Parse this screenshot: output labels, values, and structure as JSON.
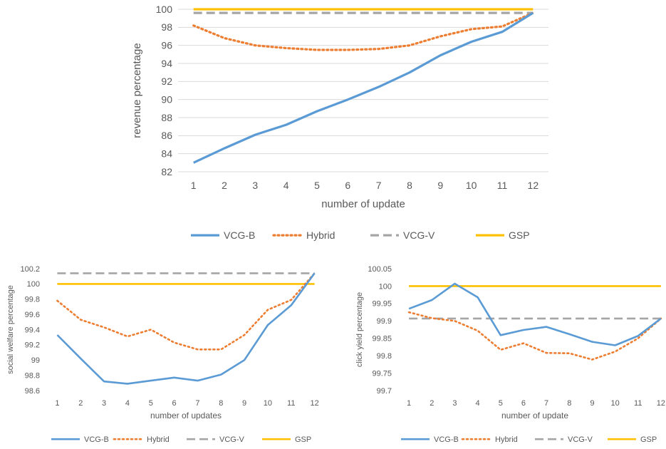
{
  "colors": {
    "VCG-B": "#5B9BD5",
    "Hybrid": "#ED7D31",
    "VCG-V": "#A5A5A5",
    "GSP": "#FFC000",
    "grid": "#D9D9D9",
    "text": "#595959"
  },
  "chart_data": [
    {
      "type": "line",
      "id": "revenue",
      "title": "",
      "xlabel": "number of update",
      "ylabel": "revenue percentage",
      "ylim": [
        82,
        100
      ],
      "yticks": [
        82,
        84,
        86,
        88,
        90,
        92,
        94,
        96,
        98,
        100
      ],
      "ytick_labels": [
        "82",
        "84",
        "86",
        "88",
        "90",
        "92",
        "94",
        "96",
        "98",
        "100"
      ],
      "grid": true,
      "legend_position": "bottom",
      "x": [
        1,
        2,
        3,
        4,
        5,
        6,
        7,
        8,
        9,
        10,
        11,
        12
      ],
      "series": [
        {
          "name": "VCG-B",
          "style": "solid",
          "values": [
            83.0,
            84.6,
            86.1,
            87.2,
            88.7,
            90.0,
            91.4,
            93.0,
            94.9,
            96.4,
            97.5,
            99.6
          ]
        },
        {
          "name": "Hybrid",
          "style": "dotted",
          "values": [
            98.2,
            96.8,
            96.0,
            95.7,
            95.5,
            95.5,
            95.6,
            96.0,
            97.0,
            97.8,
            98.1,
            99.6
          ]
        },
        {
          "name": "VCG-V",
          "style": "dashed",
          "values": [
            99.6,
            99.6,
            99.6,
            99.6,
            99.6,
            99.6,
            99.6,
            99.6,
            99.6,
            99.6,
            99.6,
            99.6
          ]
        },
        {
          "name": "GSP",
          "style": "solid",
          "values": [
            100,
            100,
            100,
            100,
            100,
            100,
            100,
            100,
            100,
            100,
            100,
            100
          ]
        }
      ]
    },
    {
      "type": "line",
      "id": "social-welfare",
      "title": "",
      "xlabel": "number of updates",
      "ylabel": "social welfare percentage",
      "ylim": [
        98.6,
        100.2
      ],
      "yticks": [
        98.6,
        98.8,
        99.0,
        99.2,
        99.4,
        99.6,
        99.8,
        100.0,
        100.2
      ],
      "ytick_labels": [
        "98.6",
        "98.8",
        "99",
        "99.2",
        "99.4",
        "99.6",
        "99.8",
        "100",
        "100.2"
      ],
      "grid": false,
      "legend_position": "bottom",
      "x": [
        1,
        2,
        3,
        4,
        5,
        6,
        7,
        8,
        9,
        10,
        11,
        12
      ],
      "series": [
        {
          "name": "VCG-B",
          "style": "solid",
          "values": [
            99.33,
            99.02,
            98.72,
            98.69,
            98.73,
            98.77,
            98.73,
            98.81,
            99.0,
            99.46,
            99.72,
            100.14
          ]
        },
        {
          "name": "Hybrid",
          "style": "dotted",
          "values": [
            99.78,
            99.53,
            99.43,
            99.31,
            99.4,
            99.23,
            99.14,
            99.14,
            99.33,
            99.66,
            99.79,
            100.14
          ]
        },
        {
          "name": "VCG-V",
          "style": "dashed",
          "values": [
            100.14,
            100.14,
            100.14,
            100.14,
            100.14,
            100.14,
            100.14,
            100.14,
            100.14,
            100.14,
            100.14,
            100.14
          ]
        },
        {
          "name": "GSP",
          "style": "solid",
          "values": [
            100,
            100,
            100,
            100,
            100,
            100,
            100,
            100,
            100,
            100,
            100,
            100
          ]
        }
      ]
    },
    {
      "type": "line",
      "id": "click-yield",
      "title": "",
      "xlabel": "number of update",
      "ylabel": "click yield percentage",
      "ylim": [
        99.7,
        100.05
      ],
      "yticks": [
        99.7,
        99.75,
        99.8,
        99.85,
        99.9,
        99.95,
        100.0,
        100.05
      ],
      "ytick_labels": [
        "99.7",
        "99.75",
        "99.8",
        "99.85",
        "99.9",
        "99.95",
        "100",
        "100.05"
      ],
      "grid": false,
      "legend_position": "bottom",
      "x": [
        1,
        2,
        3,
        4,
        5,
        6,
        7,
        8,
        9,
        10,
        11,
        12
      ],
      "series": [
        {
          "name": "VCG-B",
          "style": "solid",
          "values": [
            99.935,
            99.96,
            100.007,
            99.968,
            99.859,
            99.874,
            99.883,
            99.862,
            99.84,
            99.83,
            99.857,
            99.907
          ]
        },
        {
          "name": "Hybrid",
          "style": "dotted",
          "values": [
            99.925,
            99.908,
            99.9,
            99.872,
            99.817,
            99.836,
            99.808,
            99.807,
            99.789,
            99.812,
            99.85,
            99.907
          ]
        },
        {
          "name": "VCG-V",
          "style": "dashed",
          "values": [
            99.907,
            99.907,
            99.907,
            99.907,
            99.907,
            99.907,
            99.907,
            99.907,
            99.907,
            99.907,
            99.907,
            99.907
          ]
        },
        {
          "name": "GSP",
          "style": "solid",
          "values": [
            100,
            100,
            100,
            100,
            100,
            100,
            100,
            100,
            100,
            100,
            100,
            100
          ]
        }
      ]
    }
  ]
}
